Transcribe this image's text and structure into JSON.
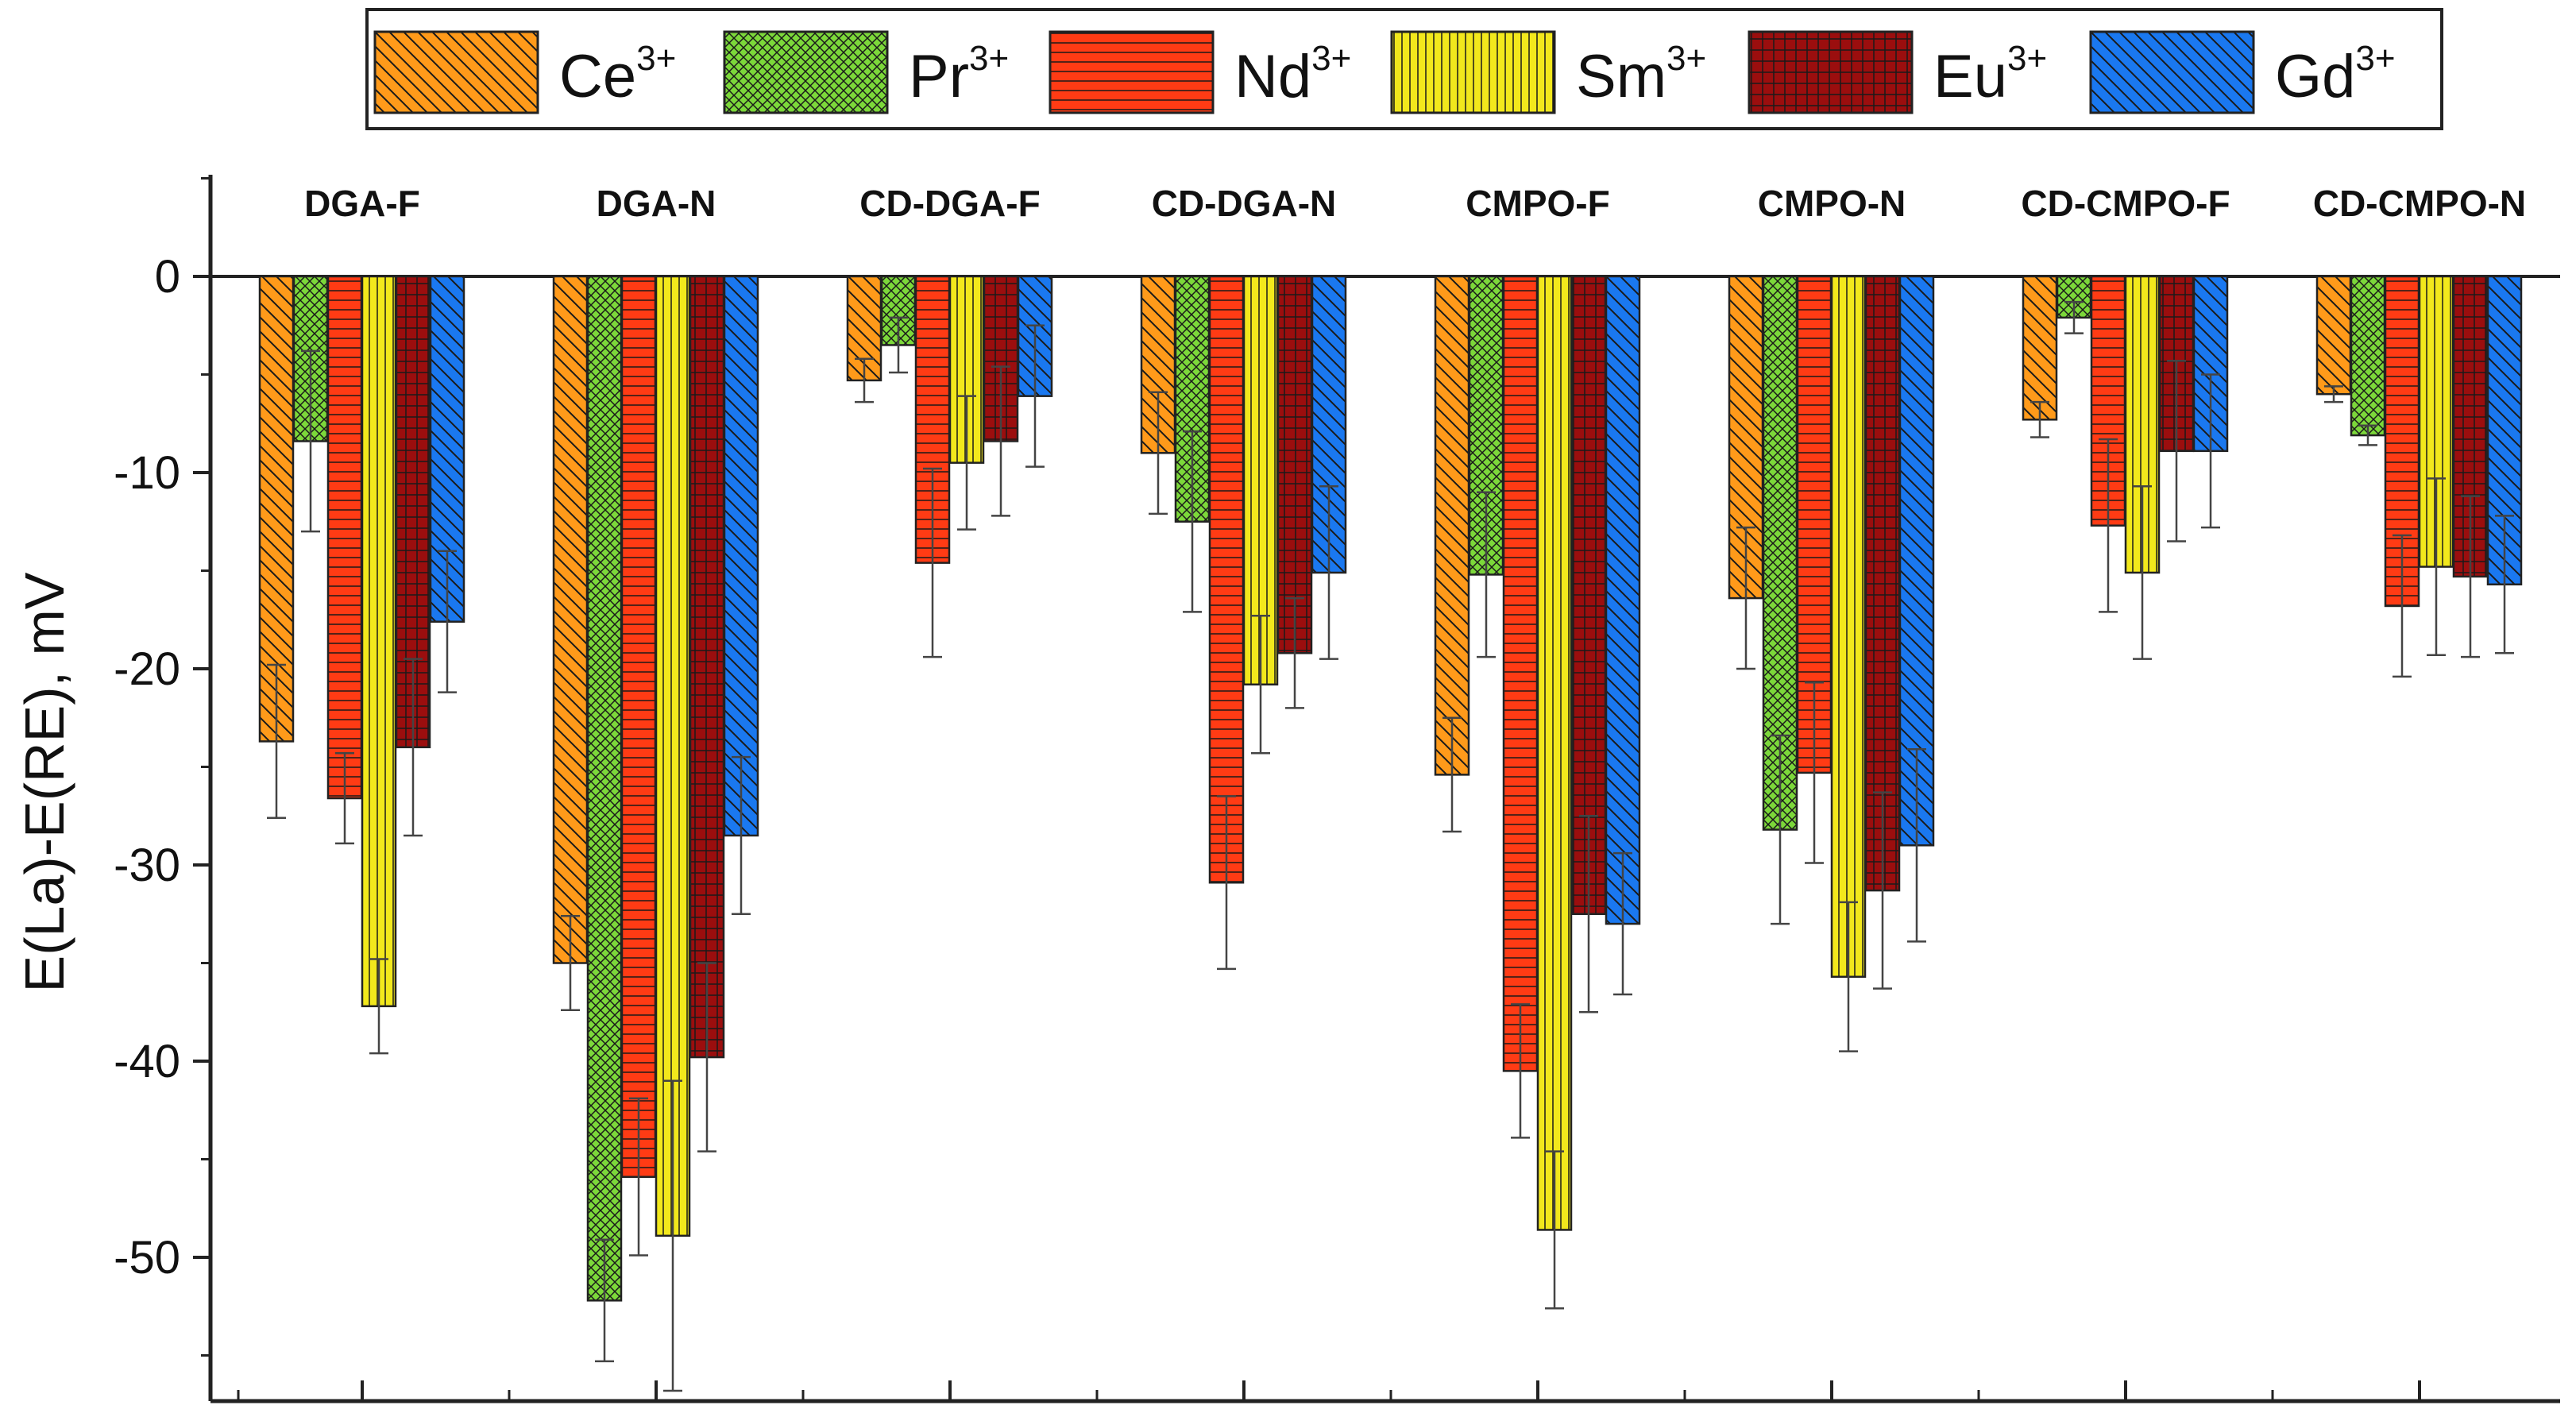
{
  "chart_data": {
    "type": "bar",
    "title": "",
    "xlabel": "",
    "ylabel": "E(La)-E(RE), mV",
    "ylim": [
      -57,
      5
    ],
    "yticks": [
      0,
      -10,
      -20,
      -30,
      -40,
      -50
    ],
    "legend_position": "top-center",
    "categories": [
      "DGA-F",
      "DGA-N",
      "CD-DGA-F",
      "CD-DGA-N",
      "CMPO-F",
      "CMPO-N",
      "CD-CMPO-F",
      "CD-CMPO-N"
    ],
    "series": [
      {
        "name": "Ce",
        "sup": "3+",
        "color": "#FF9A1A",
        "pattern": "diag-down",
        "values": [
          -23.7,
          -35.0,
          -5.3,
          -9.0,
          -25.4,
          -16.4,
          -7.3,
          -6.0
        ],
        "errors": [
          3.9,
          2.4,
          1.1,
          3.1,
          2.9,
          3.6,
          0.9,
          0.4
        ]
      },
      {
        "name": "Pr",
        "sup": "3+",
        "color": "#7CD83A",
        "pattern": "crosshatch",
        "values": [
          -8.4,
          -52.2,
          -3.5,
          -12.5,
          -15.2,
          -28.2,
          -2.1,
          -8.1
        ],
        "errors": [
          4.6,
          3.1,
          1.4,
          4.6,
          4.2,
          4.8,
          0.8,
          0.5
        ]
      },
      {
        "name": "Nd",
        "sup": "3+",
        "color": "#FF3B14",
        "pattern": "horizontal",
        "values": [
          -26.6,
          -45.9,
          -14.6,
          -30.9,
          -40.5,
          -25.3,
          -12.7,
          -16.8
        ],
        "errors": [
          2.3,
          4.0,
          4.8,
          4.4,
          3.4,
          4.6,
          4.4,
          3.6
        ]
      },
      {
        "name": "Sm",
        "sup": "3+",
        "color": "#F2E81C",
        "pattern": "vertical",
        "values": [
          -37.2,
          -48.9,
          -9.5,
          -20.8,
          -48.6,
          -35.7,
          -15.1,
          -14.8
        ],
        "errors": [
          2.4,
          7.9,
          3.4,
          3.5,
          4.0,
          3.8,
          4.4,
          4.5
        ]
      },
      {
        "name": "Eu",
        "sup": "3+",
        "color": "#9B0E0E",
        "pattern": "grid",
        "values": [
          -24.0,
          -39.8,
          -8.4,
          -19.2,
          -32.5,
          -31.3,
          -8.9,
          -15.3
        ],
        "errors": [
          4.5,
          4.8,
          3.8,
          2.8,
          5.0,
          5.0,
          4.6,
          4.1
        ]
      },
      {
        "name": "Gd",
        "sup": "3+",
        "color": "#1A78F0",
        "pattern": "diag-down",
        "values": [
          -17.6,
          -28.5,
          -6.1,
          -15.1,
          -33.0,
          -29.0,
          -8.9,
          -15.7
        ],
        "errors": [
          3.6,
          4.0,
          3.6,
          4.4,
          3.6,
          4.9,
          3.9,
          3.5
        ]
      }
    ]
  }
}
